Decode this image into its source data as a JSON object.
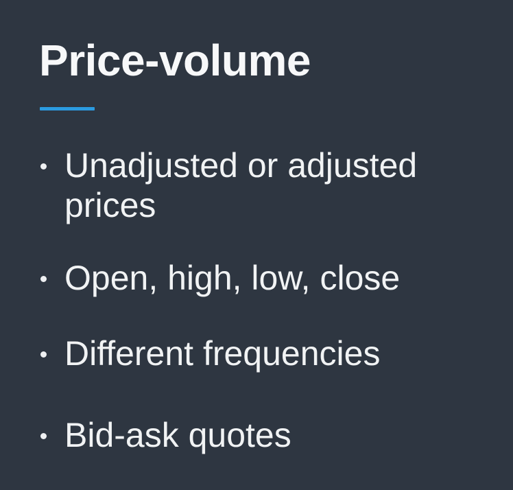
{
  "slide": {
    "title": "Price-volume",
    "accent_color": "#2b9be0",
    "background_color": "#2e3641",
    "bullets": [
      {
        "text": "Unadjusted or adjusted prices"
      },
      {
        "text": "Open, high, low, close"
      },
      {
        "text": "Different frequencies"
      },
      {
        "text": "Bid-ask quotes"
      }
    ]
  }
}
